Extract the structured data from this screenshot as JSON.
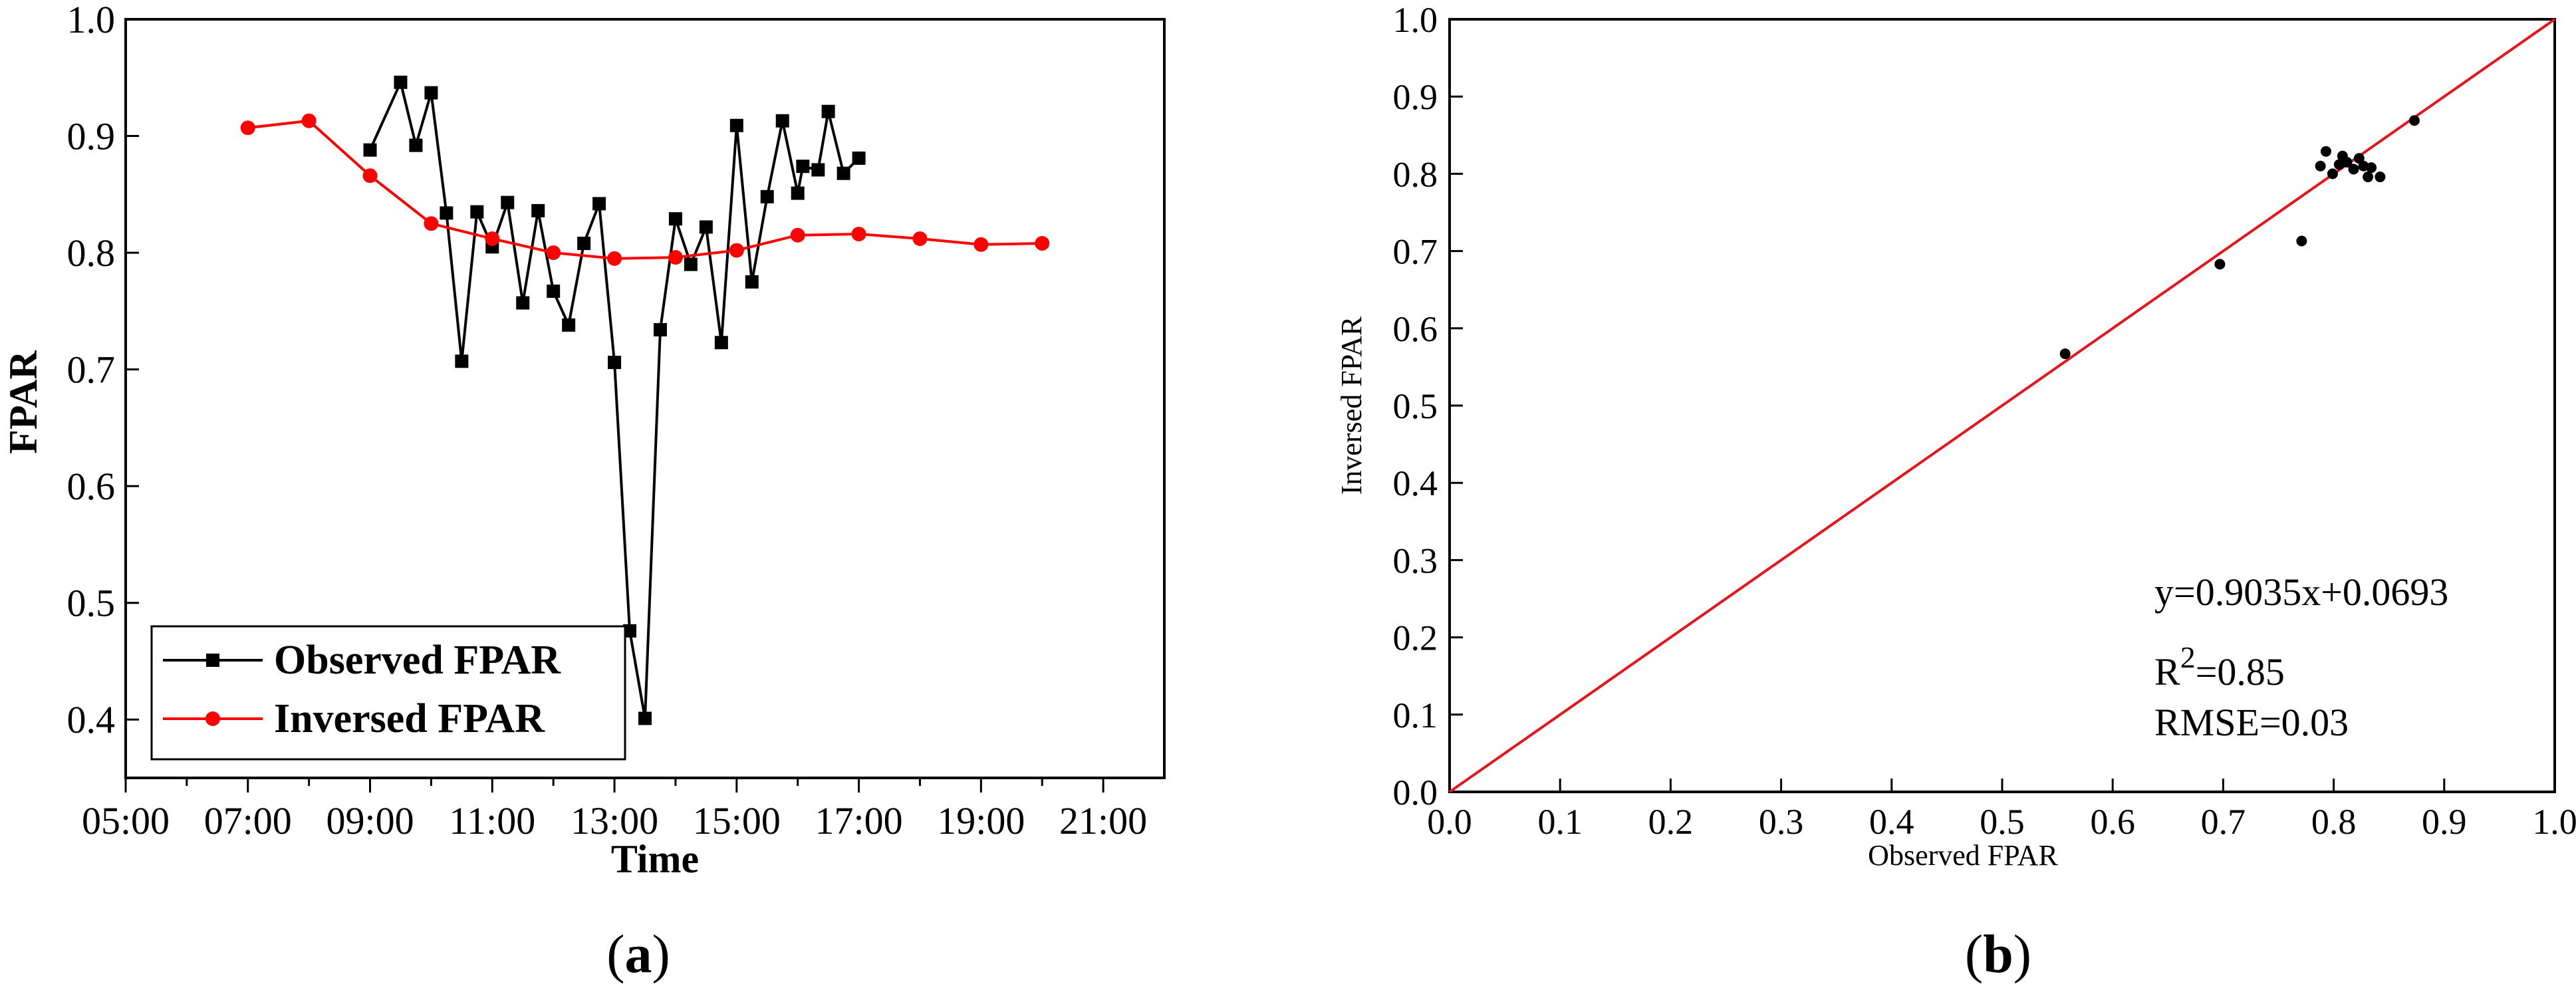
{
  "figure": {
    "panel_a_label": "a",
    "panel_b_label": "b"
  },
  "colors": {
    "observed": "#000000",
    "inversed": "#ff0000",
    "fit_line": "#e8141b",
    "points": "#000000"
  },
  "chart_data": [
    {
      "panel": "a",
      "type": "line",
      "title": "",
      "xlabel": "Time",
      "ylabel": "FPAR",
      "xlim": [
        5,
        22
      ],
      "ylim": [
        0.35,
        1.0
      ],
      "x_ticks": [
        "05:00",
        "07:00",
        "09:00",
        "11:00",
        "13:00",
        "15:00",
        "17:00",
        "19:00",
        "21:00"
      ],
      "y_ticks": [
        "0.4",
        "0.5",
        "0.6",
        "0.7",
        "0.8",
        "0.9",
        "1.0"
      ],
      "legend_position": "lower-left",
      "series": [
        {
          "name": "Observed FPAR",
          "marker": "square",
          "x": [
            "09:00",
            "09:30",
            "09:45",
            "10:00",
            "10:15",
            "10:30",
            "10:45",
            "11:00",
            "11:15",
            "11:30",
            "11:45",
            "12:00",
            "12:15",
            "12:30",
            "12:45",
            "13:00",
            "13:15",
            "13:30",
            "13:45",
            "14:00",
            "14:15",
            "14:30",
            "14:45",
            "15:00",
            "15:15",
            "15:30",
            "15:45",
            "16:00",
            "16:05",
            "16:20",
            "16:30",
            "16:45",
            "17:00"
          ],
          "values": [
            0.888,
            0.946,
            0.892,
            0.937,
            0.834,
            0.707,
            0.835,
            0.805,
            0.843,
            0.757,
            0.836,
            0.767,
            0.738,
            0.808,
            0.842,
            0.706,
            0.476,
            0.401,
            0.734,
            0.829,
            0.79,
            0.822,
            0.723,
            0.909,
            0.775,
            0.848,
            0.913,
            0.851,
            0.874,
            0.871,
            0.921,
            0.868,
            0.881
          ]
        },
        {
          "name": "Inversed FPAR",
          "marker": "circle",
          "x": [
            "07:00",
            "08:00",
            "09:00",
            "10:00",
            "11:00",
            "12:00",
            "13:00",
            "14:00",
            "15:00",
            "16:00",
            "17:00",
            "18:00",
            "19:00",
            "20:00"
          ],
          "values": [
            0.907,
            0.913,
            0.866,
            0.825,
            0.812,
            0.8,
            0.795,
            0.796,
            0.802,
            0.815,
            0.816,
            0.812,
            0.807,
            0.808
          ]
        }
      ]
    },
    {
      "panel": "b",
      "type": "scatter",
      "title": "",
      "xlabel": "Observed FPAR",
      "ylabel": "Inversed FPAR",
      "xlim": [
        0.0,
        1.0
      ],
      "ylim": [
        0.0,
        1.0
      ],
      "x_ticks": [
        "0.0",
        "0.1",
        "0.2",
        "0.3",
        "0.4",
        "0.5",
        "0.6",
        "0.7",
        "0.8",
        "0.9",
        "1.0"
      ],
      "y_ticks": [
        "0.0",
        "0.1",
        "0.2",
        "0.3",
        "0.4",
        "0.5",
        "0.6",
        "0.7",
        "0.8",
        "0.9",
        "1.0"
      ],
      "reference_line": {
        "from": [
          0.0,
          0.0
        ],
        "to": [
          1.0,
          1.0
        ]
      },
      "annotations": {
        "equation": "y=0.9035x+0.0693",
        "r2_prefix": "R",
        "r2_superscript": "2",
        "r2_suffix": "=0.85",
        "rmse": "RMSE=0.03"
      },
      "points": [
        {
          "x": 0.557,
          "y": 0.567
        },
        {
          "x": 0.697,
          "y": 0.683
        },
        {
          "x": 0.771,
          "y": 0.713
        },
        {
          "x": 0.788,
          "y": 0.81
        },
        {
          "x": 0.793,
          "y": 0.829
        },
        {
          "x": 0.799,
          "y": 0.8
        },
        {
          "x": 0.805,
          "y": 0.812
        },
        {
          "x": 0.808,
          "y": 0.823
        },
        {
          "x": 0.812,
          "y": 0.815
        },
        {
          "x": 0.818,
          "y": 0.806
        },
        {
          "x": 0.823,
          "y": 0.82
        },
        {
          "x": 0.827,
          "y": 0.81
        },
        {
          "x": 0.831,
          "y": 0.796
        },
        {
          "x": 0.834,
          "y": 0.808
        },
        {
          "x": 0.842,
          "y": 0.796
        },
        {
          "x": 0.873,
          "y": 0.869
        }
      ]
    }
  ]
}
